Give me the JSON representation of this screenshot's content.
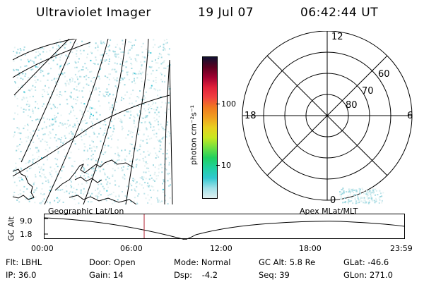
{
  "header": {
    "title": "Ultraviolet Imager",
    "date": "19 Jul 07",
    "time": "06:42:44 UT"
  },
  "colorbar": {
    "unit_label": "photon cm⁻²s⁻¹",
    "ticks": [
      "100",
      "10"
    ],
    "colors": [
      "#101030",
      "#5a0020",
      "#a00030",
      "#e0203a",
      "#f04040",
      "#f07a20",
      "#f0a020",
      "#e8d020",
      "#c8e820",
      "#70e040",
      "#20d060",
      "#20d0a0",
      "#30c8d0",
      "#a0e0e8",
      "#e0f0f0"
    ]
  },
  "polar_plot": {
    "mlt_labels": {
      "top": "12",
      "left": "18",
      "right": "6",
      "bottom": "0"
    },
    "lat_labels": [
      "60",
      "70",
      "80"
    ]
  },
  "map_labels": {
    "left": "Geographic Lat/Lon",
    "right": "Apex MLat/MLT"
  },
  "timeline": {
    "ylabel": "GC Alt",
    "y_ticks": [
      "9.0",
      "1.8"
    ],
    "x_ticks": [
      "00:00",
      "06:00",
      "12:00",
      "18:00",
      "23:59"
    ],
    "marker_color": "#b02030"
  },
  "info": {
    "row1": [
      {
        "label": "Flt:",
        "value": "LBHL"
      },
      {
        "label": "Door:",
        "value": "Open"
      },
      {
        "label": "Mode:",
        "value": "Normal"
      },
      {
        "label": "GC Alt:",
        "value": "5.8 Re"
      },
      {
        "label": "GLat:",
        "value": "-46.6"
      }
    ],
    "row2": [
      {
        "label": "IP:",
        "value": "36.0"
      },
      {
        "label": "Gain:",
        "value": "14"
      },
      {
        "label": "Dsp:",
        "value": "-4.2"
      },
      {
        "label": "Seq:",
        "value": "39"
      },
      {
        "label": "GLon:",
        "value": "271.0"
      }
    ]
  }
}
